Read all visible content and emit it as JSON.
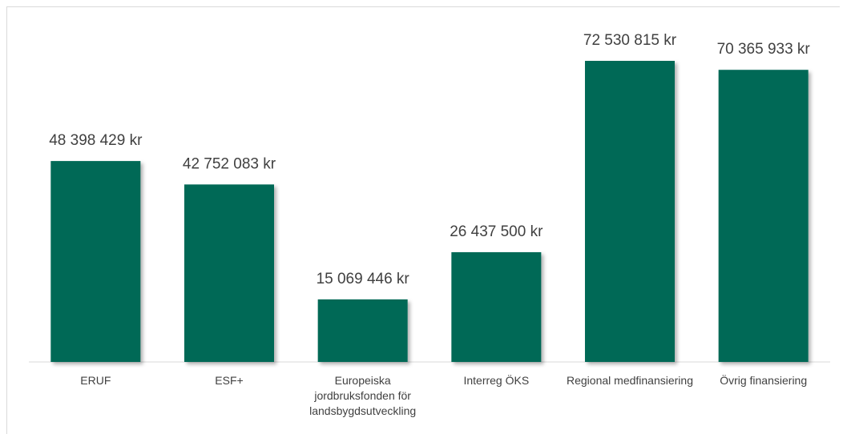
{
  "chart_data": {
    "type": "bar",
    "categories": [
      "ERUF",
      "ESF+",
      "Europeiska jordbruksfonden för landsbygdsutveckling",
      "Interreg ÖKS",
      "Regional medfinansiering",
      "Övrig finansiering"
    ],
    "values": [
      48398429,
      42752083,
      15069446,
      26437500,
      72530815,
      70365933
    ],
    "value_labels": [
      "48 398 429 kr",
      "42 752 083 kr",
      "15 069 446 kr",
      "26 437 500 kr",
      "72 530 815 kr",
      "70 365 933 kr"
    ],
    "color": "#006957"
  }
}
